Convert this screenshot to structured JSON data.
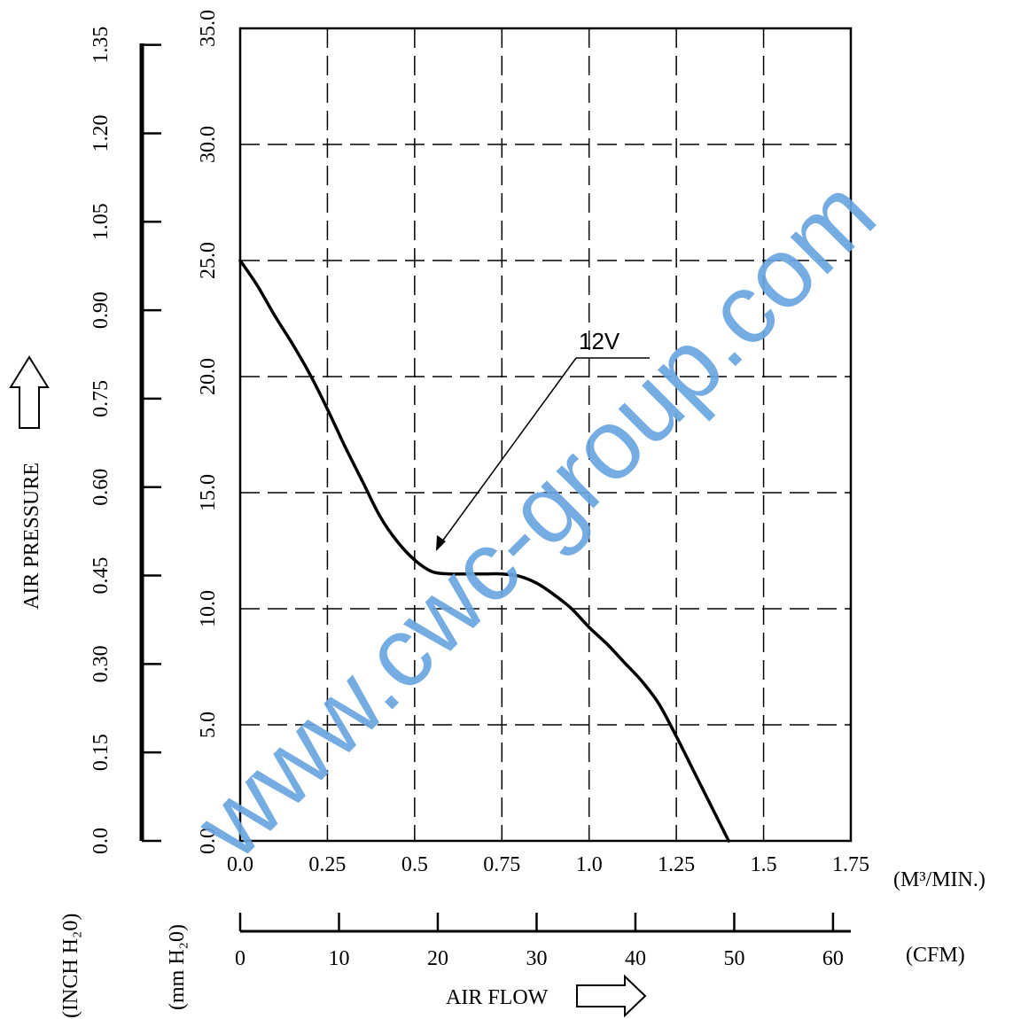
{
  "chart_data": {
    "type": "line",
    "x_primary": {
      "ticks": [
        "0.0",
        "0.25",
        "0.5",
        "0.75",
        "1.0",
        "1.25",
        "1.5",
        "1.75"
      ],
      "unit": "(M³/MIN.)",
      "range": [
        0,
        1.75
      ]
    },
    "x_secondary": {
      "ticks": [
        "0",
        "10",
        "20",
        "30",
        "40",
        "50",
        "60"
      ],
      "unit": "(CFM)",
      "range": [
        0,
        61.8
      ]
    },
    "y_primary": {
      "ticks": [
        "0.0",
        "5.0",
        "10.0",
        "15.0",
        "20.0",
        "25.0",
        "30.0",
        "35.0"
      ],
      "unit": "(mm H₂0)",
      "range": [
        0,
        35
      ]
    },
    "y_secondary": {
      "ticks": [
        "0.0",
        "0.15",
        "0.30",
        "0.45",
        "0.60",
        "0.75",
        "0.90",
        "1.05",
        "1.20",
        "1.35"
      ],
      "unit": "(INCH H₂0)",
      "range": [
        0,
        1.378
      ]
    },
    "ylabel": "AIR PRESSURE",
    "xlabel": "AIR FLOW",
    "grid": true,
    "series": [
      {
        "name": "12V",
        "x": [
          0.0,
          0.05,
          0.1,
          0.15,
          0.2,
          0.25,
          0.3,
          0.35,
          0.4,
          0.45,
          0.5,
          0.55,
          0.6,
          0.65,
          0.7,
          0.75,
          0.8,
          0.85,
          0.9,
          0.95,
          1.0,
          1.05,
          1.1,
          1.15,
          1.2,
          1.25,
          1.3,
          1.35,
          1.4
        ],
        "y": [
          25.0,
          23.9,
          22.6,
          21.4,
          20.1,
          18.6,
          17.0,
          15.5,
          14.0,
          12.9,
          12.1,
          11.6,
          11.5,
          11.5,
          11.5,
          11.5,
          11.4,
          11.1,
          10.6,
          10.0,
          9.2,
          8.5,
          7.7,
          6.9,
          5.9,
          4.5,
          3.0,
          1.5,
          0.0
        ]
      }
    ],
    "annotations": [
      {
        "text": "12V",
        "points_to": {
          "x": 0.56,
          "y": 12.0
        }
      }
    ]
  },
  "watermark": "www.cwc-group.com",
  "watermark_color": "#6aa6e0"
}
